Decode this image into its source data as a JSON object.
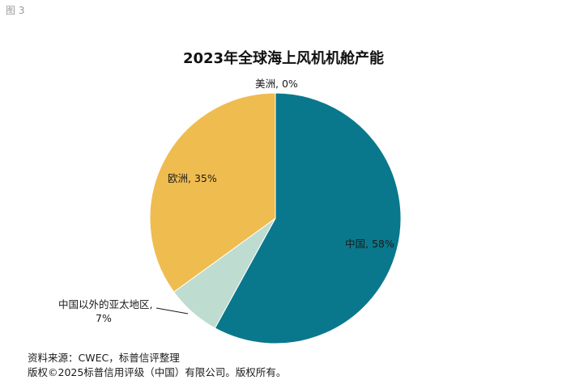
{
  "figure_label": "图 3",
  "chart_data": {
    "type": "pie",
    "title": "2023年全球海上风机机舱产能",
    "slices": [
      {
        "name": "中国",
        "value": 58,
        "label": "中国, 58%",
        "color": "#0a788c"
      },
      {
        "name": "中国以外的亚太地区",
        "value": 7,
        "label_line1": "中国以外的亚太地区,",
        "label_line2": "7%",
        "color": "#bedccf"
      },
      {
        "name": "欧洲",
        "value": 35,
        "label": "欧洲, 35%",
        "color": "#efbc50"
      },
      {
        "name": "美洲",
        "value": 0,
        "label": "美洲, 0%",
        "color": "#7aa6c2"
      }
    ]
  },
  "footer": {
    "source": "资料来源：CWEC，标普信评整理",
    "copyright": "版权©2025标普信用评级（中国）有限公司。版权所有。"
  }
}
